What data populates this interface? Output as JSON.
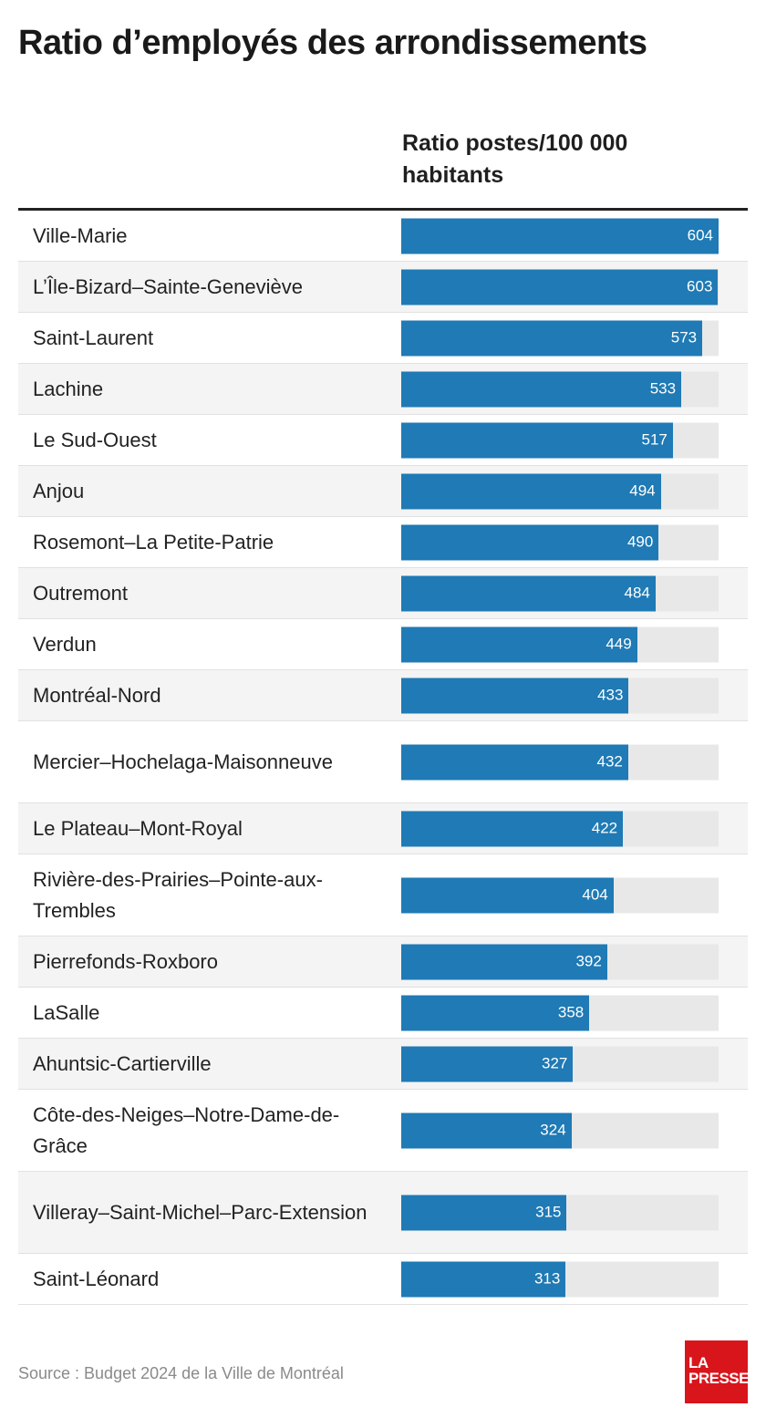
{
  "title": "Ratio d’employés des arrondissements",
  "source": "Source : Budget 2024 de la Ville de Montréal",
  "logo": {
    "line1": "LA",
    "line2": "PRESSE"
  },
  "colors": {
    "bar": "#1f7ab5",
    "track": "#e8e8e8",
    "logo": "#d9151c"
  },
  "chart_data": {
    "type": "bar",
    "orientation": "horizontal",
    "title": "Ratio d’employés des arrondissements",
    "value_header": "Ratio postes/100 000 habitants",
    "xlim": [
      0,
      604
    ],
    "categories": [
      "Ville-Marie",
      "L’Île-Bizard–Sainte-Geneviève",
      "Saint-Laurent",
      "Lachine",
      "Le Sud-Ouest",
      "Anjou",
      "Rosemont–La Petite-Patrie",
      "Outremont",
      "Verdun",
      "Montréal-Nord",
      "Mercier–Hochelaga-Maisonneuve",
      "Le Plateau–Mont-Royal",
      "Rivière-des-Prairies–Pointe-aux-Trembles",
      "Pierrefonds-Roxboro",
      "LaSalle",
      "Ahuntsic-Cartierville",
      "Côte-des-Neiges–Notre-Dame-de-Grâce",
      "Villeray–Saint-Michel–Parc-Extension",
      "Saint-Léonard"
    ],
    "values": [
      604,
      603,
      573,
      533,
      517,
      494,
      490,
      484,
      449,
      433,
      432,
      422,
      404,
      392,
      358,
      327,
      324,
      315,
      313
    ]
  }
}
